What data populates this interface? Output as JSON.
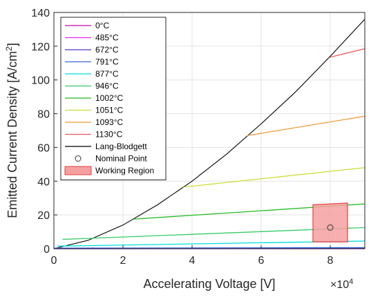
{
  "chart_data": {
    "type": "line",
    "xlabel": "Accelerating Voltage [V]",
    "ylabel": "Emitted Current Density [A/cm",
    "ylabel_sup": "2",
    "ylabel_close": "]",
    "x_exponent_base": "×10",
    "x_exponent_power": "4",
    "xlim": [
      0,
      90000
    ],
    "ylim": [
      0,
      140
    ],
    "xticks": [
      0,
      20000,
      40000,
      60000,
      80000
    ],
    "xtick_labels": [
      "0",
      "2",
      "4",
      "6",
      "8"
    ],
    "yticks": [
      0,
      20,
      40,
      60,
      80,
      100,
      120,
      140
    ],
    "ytick_labels": [
      "0",
      "20",
      "40",
      "60",
      "80",
      "100",
      "120",
      "140"
    ],
    "grid": true,
    "legend_position": "top-left",
    "lang_blodgett": {
      "name": "Lang-Blodgett",
      "color": "#000000",
      "x": [
        0,
        10000,
        20000,
        30000,
        40000,
        50000,
        60000,
        70000,
        80000,
        90000
      ],
      "y": [
        0,
        5,
        14,
        26,
        40,
        56,
        74,
        93,
        114,
        136
      ]
    },
    "series": [
      {
        "name": "0°C",
        "color": "#cc00aa",
        "x": [
          0,
          90000
        ],
        "y": [
          0,
          0
        ]
      },
      {
        "name": "485°C",
        "color": "#ee22ee",
        "x": [
          0,
          90000
        ],
        "y": [
          0,
          0
        ]
      },
      {
        "name": "672°C",
        "color": "#5533cc",
        "x": [
          0,
          90000
        ],
        "y": [
          0,
          0.2
        ]
      },
      {
        "name": "791°C",
        "color": "#3366dd",
        "x": [
          0,
          90000
        ],
        "y": [
          0.3,
          0.6
        ]
      },
      {
        "name": "877°C",
        "color": "#00dddd",
        "x": [
          1000,
          90000
        ],
        "y": [
          1.5,
          4.5
        ]
      },
      {
        "name": "946°C",
        "color": "#33cc66",
        "x": [
          2500,
          90000
        ],
        "y": [
          5.5,
          12.5
        ]
      },
      {
        "name": "1002°C",
        "color": "#22bb22",
        "x": [
          23000,
          90000
        ],
        "y": [
          17.5,
          26.5
        ]
      },
      {
        "name": "1051°C",
        "color": "#ccdd33",
        "x": [
          37500,
          90000
        ],
        "y": [
          36.5,
          48
        ]
      },
      {
        "name": "1093°C",
        "color": "#ee9933",
        "x": [
          56000,
          90000
        ],
        "y": [
          67,
          78.5
        ]
      },
      {
        "name": "1130°C",
        "color": "#ee5555",
        "x": [
          80000,
          90000
        ],
        "y": [
          113.5,
          118.5
        ]
      }
    ],
    "nominal_point": {
      "name": "Nominal Point",
      "x": 80000,
      "y": 12.5
    },
    "working_region": {
      "name": "Working Region",
      "fill": "#f5a0a0",
      "edge": "#e04040",
      "x": [
        75000,
        85000,
        85000,
        75000
      ],
      "y": [
        4,
        4,
        27,
        26
      ]
    }
  }
}
